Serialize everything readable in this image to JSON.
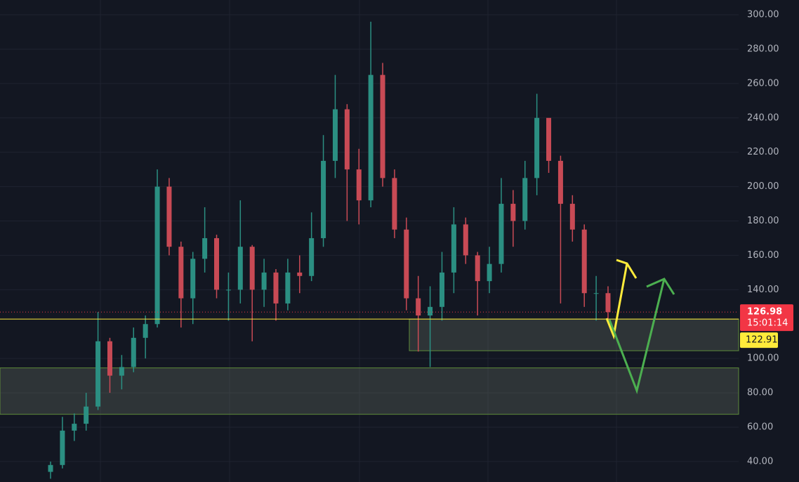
{
  "chart_data": {
    "type": "candlestick",
    "up_color": "#2b8f82",
    "down_color": "#c84a55",
    "ylim": [
      28.1,
      308.6
    ],
    "yticks": [
      {
        "value": 300,
        "label": "300.00"
      },
      {
        "value": 280,
        "label": "280.00"
      },
      {
        "value": 260,
        "label": "260.00"
      },
      {
        "value": 240,
        "label": "240.00"
      },
      {
        "value": 220,
        "label": "220.00"
      },
      {
        "value": 200,
        "label": "200.00"
      },
      {
        "value": 180,
        "label": "180.00"
      },
      {
        "value": 160,
        "label": "160.00"
      },
      {
        "value": 140,
        "label": "140.00"
      },
      {
        "value": 100,
        "label": "100.00"
      },
      {
        "value": 80,
        "label": "80.00"
      },
      {
        "value": 60,
        "label": "60.00"
      },
      {
        "value": 40,
        "label": "40.00"
      }
    ],
    "grid": true,
    "open": [
      34,
      38,
      58,
      62,
      72,
      110,
      90,
      95,
      112,
      120,
      200,
      165,
      135,
      158,
      170,
      140,
      140,
      165,
      140,
      150,
      132,
      150,
      148,
      170,
      215,
      245,
      210,
      192,
      265,
      205,
      175,
      135,
      125,
      130,
      150,
      178,
      160,
      145,
      155,
      190,
      180,
      205,
      240,
      215,
      190,
      175,
      138,
      138
    ],
    "high": [
      40,
      66,
      68,
      80,
      127,
      112,
      102,
      118,
      125,
      210,
      205,
      168,
      162,
      188,
      172,
      150,
      192,
      166,
      158,
      152,
      158,
      160,
      185,
      230,
      265,
      248,
      222,
      296,
      272,
      210,
      182,
      148,
      142,
      162,
      188,
      182,
      162,
      165,
      205,
      198,
      215,
      254,
      238,
      218,
      195,
      178,
      148,
      142
    ],
    "low": [
      30,
      36,
      52,
      58,
      70,
      80,
      82,
      92,
      100,
      118,
      160,
      118,
      120,
      150,
      135,
      122,
      132,
      110,
      130,
      122,
      128,
      138,
      145,
      165,
      205,
      180,
      178,
      188,
      200,
      170,
      128,
      104,
      95,
      122,
      138,
      155,
      125,
      138,
      150,
      165,
      175,
      195,
      208,
      132,
      168,
      130,
      122,
      122
    ],
    "close": [
      38,
      58,
      62,
      72,
      110,
      90,
      95,
      112,
      120,
      200,
      165,
      135,
      158,
      170,
      140,
      140,
      165,
      140,
      150,
      132,
      150,
      148,
      170,
      215,
      245,
      210,
      192,
      265,
      205,
      175,
      135,
      125,
      130,
      150,
      178,
      160,
      145,
      155,
      190,
      180,
      205,
      240,
      215,
      190,
      175,
      138,
      138,
      126.98
    ],
    "last_price": 126.98,
    "last_price_color": "#f23645",
    "countdown": "15:01:14",
    "level": 122.91,
    "level_color": "#ffeb3b",
    "zones": [
      {
        "from": 104.5,
        "to": 122.91
      },
      {
        "from": 67.5,
        "to": 94.5
      }
    ]
  }
}
